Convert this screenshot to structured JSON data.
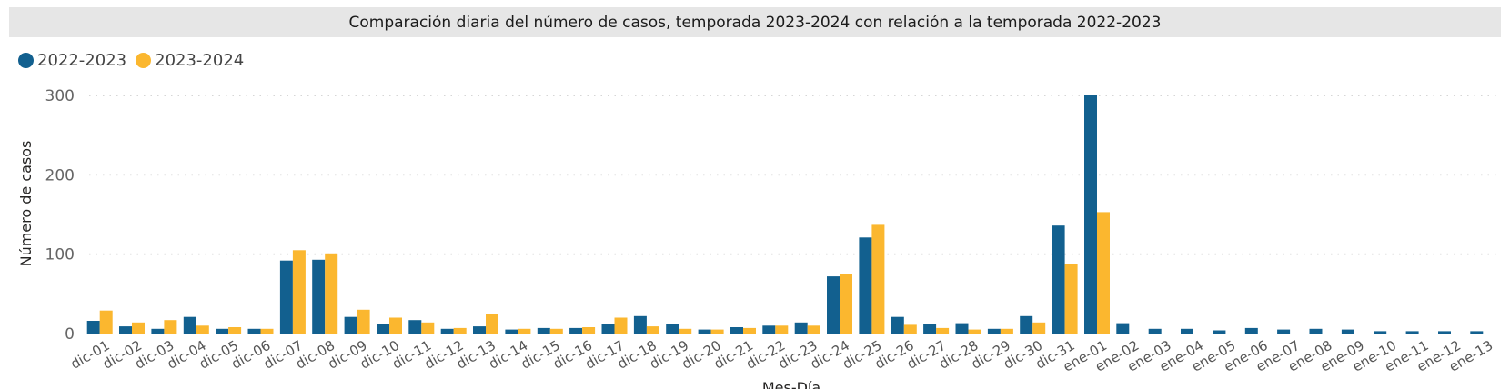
{
  "title": "Comparación diaria del número de casos, temporada 2023-2024 con relación a la temporada 2022-2023",
  "chart_data": {
    "type": "bar",
    "xlabel": "Mes-Día",
    "ylabel": "Número de casos",
    "ylim": [
      0,
      300
    ],
    "yticks": [
      "0",
      "100",
      "200",
      "300"
    ],
    "grid": true,
    "legend_position": "top-left",
    "categories": [
      "dic-01",
      "dic-02",
      "dic-03",
      "dic-04",
      "dic-05",
      "dic-06",
      "dic-07",
      "dic-08",
      "dic-09",
      "dic-10",
      "dic-11",
      "dic-12",
      "dic-13",
      "dic-14",
      "dic-15",
      "dic-16",
      "dic-17",
      "dic-18",
      "dic-19",
      "dic-20",
      "dic-21",
      "dic-22",
      "dic-23",
      "dic-24",
      "dic-25",
      "dic-26",
      "dic-27",
      "dic-28",
      "dic-29",
      "dic-30",
      "dic-31",
      "ene-01",
      "ene-02",
      "ene-03",
      "ene-04",
      "ene-05",
      "ene-06",
      "ene-07",
      "ene-08",
      "ene-09",
      "ene-10",
      "ene-11",
      "ene-12",
      "ene-13"
    ],
    "series": [
      {
        "name": "2022-2023",
        "color": "#12608f",
        "values": [
          16,
          9,
          6,
          21,
          6,
          6,
          92,
          93,
          21,
          12,
          17,
          6,
          9,
          5,
          7,
          7,
          12,
          22,
          12,
          5,
          8,
          10,
          14,
          72,
          121,
          21,
          12,
          13,
          6,
          22,
          136,
          300,
          13,
          6,
          6,
          4,
          7,
          5,
          6,
          5,
          3,
          3,
          3,
          3
        ]
      },
      {
        "name": "2023-2024",
        "color": "#fbb72f",
        "values": [
          29,
          14,
          17,
          10,
          8,
          6,
          105,
          101,
          30,
          20,
          14,
          7,
          25,
          6,
          6,
          8,
          20,
          9,
          6,
          5,
          7,
          10,
          10,
          75,
          137,
          11,
          7,
          5,
          6,
          14,
          88,
          153,
          null,
          null,
          null,
          null,
          null,
          null,
          null,
          null,
          null,
          null,
          null,
          null
        ]
      }
    ]
  }
}
